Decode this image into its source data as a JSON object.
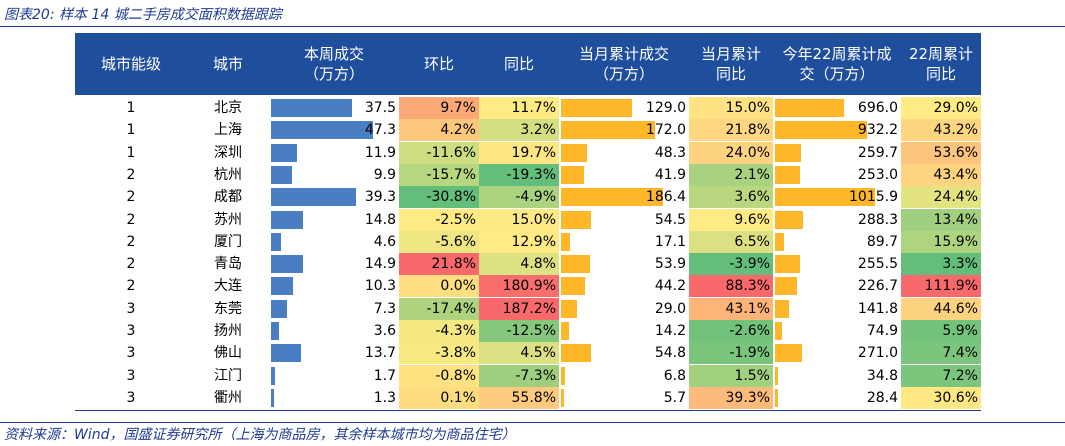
{
  "caption": "图表20: 样本 14 城二手房成交面积数据跟踪",
  "source": "资料来源：Wind，国盛证券研究所（上海为商品房，其余样本城市均为商品住宅）",
  "colors": {
    "header_bg": "#1f4e9c",
    "bar_blue": "#4a7ec2",
    "bar_orange": "#ffb72a",
    "line": "#1f3a93"
  },
  "chart_data": {
    "type": "table",
    "columns": [
      "城市能级",
      "城市",
      "本周成交\n（万方）",
      "环比",
      "同比",
      "当月累计成交\n（万方）",
      "当月累计\n同比",
      "今年22周累计成\n交（万方）",
      "22周累计\n同比"
    ],
    "rows": [
      {
        "tier": "1",
        "city": "北京",
        "weekly": 37.5,
        "wow": "9.7%",
        "yoy": "11.7%",
        "month": 129.0,
        "month_yoy": "15.0%",
        "ytd": 696.0,
        "ytd_yoy": "29.0%"
      },
      {
        "tier": "1",
        "city": "上海",
        "weekly": 47.3,
        "wow": "4.2%",
        "yoy": "3.2%",
        "month": 172.0,
        "month_yoy": "21.8%",
        "ytd": 932.2,
        "ytd_yoy": "43.2%"
      },
      {
        "tier": "1",
        "city": "深圳",
        "weekly": 11.9,
        "wow": "-11.6%",
        "yoy": "19.7%",
        "month": 48.3,
        "month_yoy": "24.0%",
        "ytd": 259.7,
        "ytd_yoy": "53.6%"
      },
      {
        "tier": "2",
        "city": "杭州",
        "weekly": 9.9,
        "wow": "-15.7%",
        "yoy": "-19.3%",
        "month": 41.9,
        "month_yoy": "2.1%",
        "ytd": 253.0,
        "ytd_yoy": "43.4%"
      },
      {
        "tier": "2",
        "city": "成都",
        "weekly": 39.3,
        "wow": "-30.8%",
        "yoy": "-4.9%",
        "month": 186.4,
        "month_yoy": "3.6%",
        "ytd": 1015.9,
        "ytd_yoy": "24.4%"
      },
      {
        "tier": "2",
        "city": "苏州",
        "weekly": 14.8,
        "wow": "-2.5%",
        "yoy": "15.0%",
        "month": 54.5,
        "month_yoy": "9.6%",
        "ytd": 288.3,
        "ytd_yoy": "13.4%"
      },
      {
        "tier": "2",
        "city": "厦门",
        "weekly": 4.6,
        "wow": "-5.6%",
        "yoy": "12.9%",
        "month": 17.1,
        "month_yoy": "6.5%",
        "ytd": 89.7,
        "ytd_yoy": "15.9%"
      },
      {
        "tier": "2",
        "city": "青岛",
        "weekly": 14.9,
        "wow": "21.8%",
        "yoy": "4.8%",
        "month": 53.9,
        "month_yoy": "-3.9%",
        "ytd": 255.5,
        "ytd_yoy": "3.3%"
      },
      {
        "tier": "2",
        "city": "大连",
        "weekly": 10.3,
        "wow": "0.0%",
        "yoy": "180.9%",
        "month": 44.2,
        "month_yoy": "88.3%",
        "ytd": 226.7,
        "ytd_yoy": "111.9%"
      },
      {
        "tier": "3",
        "city": "东莞",
        "weekly": 7.3,
        "wow": "-17.4%",
        "yoy": "187.2%",
        "month": 29.0,
        "month_yoy": "43.1%",
        "ytd": 141.8,
        "ytd_yoy": "44.6%"
      },
      {
        "tier": "3",
        "city": "扬州",
        "weekly": 3.6,
        "wow": "-4.3%",
        "yoy": "-12.5%",
        "month": 14.2,
        "month_yoy": "-2.6%",
        "ytd": 74.9,
        "ytd_yoy": "5.9%"
      },
      {
        "tier": "3",
        "city": "佛山",
        "weekly": 13.7,
        "wow": "-3.8%",
        "yoy": "4.5%",
        "month": 54.8,
        "month_yoy": "-1.9%",
        "ytd": 271.0,
        "ytd_yoy": "7.4%"
      },
      {
        "tier": "3",
        "city": "江门",
        "weekly": 1.7,
        "wow": "-0.8%",
        "yoy": "-7.3%",
        "month": 6.8,
        "month_yoy": "1.5%",
        "ytd": 34.8,
        "ytd_yoy": "7.2%"
      },
      {
        "tier": "3",
        "city": "衢州",
        "weekly": 1.3,
        "wow": "0.1%",
        "yoy": "55.8%",
        "month": 5.7,
        "month_yoy": "39.3%",
        "ytd": 28.4,
        "ytd_yoy": "30.6%"
      }
    ]
  }
}
